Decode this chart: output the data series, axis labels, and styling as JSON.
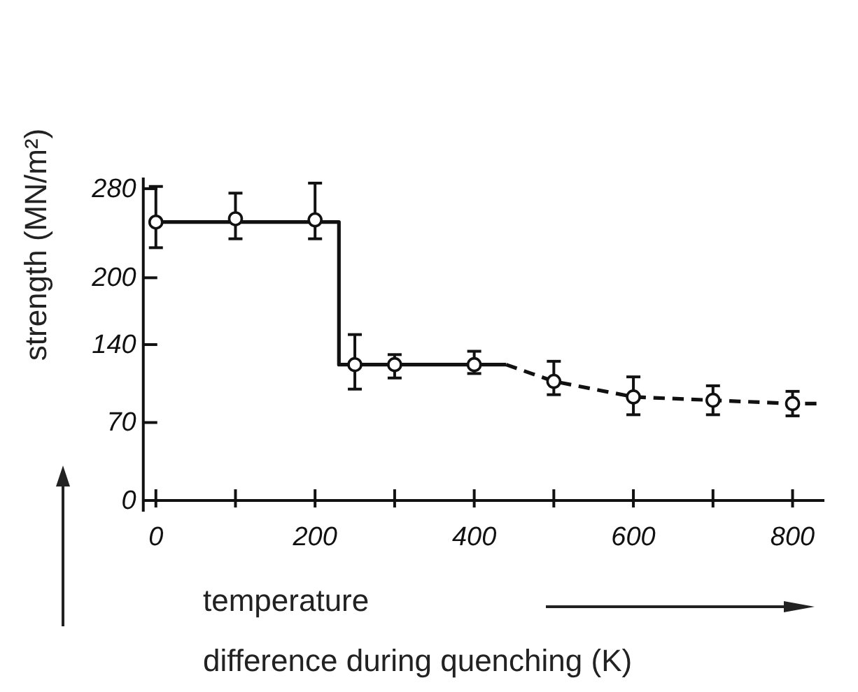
{
  "chart_data": {
    "type": "scatter",
    "xlabel": "temperature\ndifference during quenching (K)",
    "ylabel": "strength (MN/m²)",
    "xlim": [
      -20,
      840
    ],
    "ylim": [
      0,
      290
    ],
    "xticks": [
      0,
      {
        "value": 100,
        "label": null
      },
      200,
      {
        "value": 300,
        "label": null
      },
      400,
      {
        "value": 500,
        "label": null
      },
      600,
      {
        "value": 700,
        "label": null
      },
      800
    ],
    "yticks": [
      0,
      70,
      140,
      200,
      280
    ],
    "grid": false,
    "series": [
      {
        "type": "line",
        "color": "#111111",
        "line_style": "solid",
        "x": [
          0,
          230,
          230,
          440
        ],
        "values": [
          250,
          250,
          122,
          122
        ]
      },
      {
        "type": "line",
        "color": "#111111",
        "line_style": "dashed",
        "x": [
          440,
          500,
          600,
          700,
          800,
          830
        ],
        "values": [
          122,
          107,
          93,
          90,
          87,
          87
        ]
      },
      {
        "color": "#111111",
        "marker": "circle",
        "x": [
          0,
          100,
          200,
          250,
          300,
          400,
          500,
          600,
          700,
          800
        ],
        "values": [
          250,
          253,
          252,
          122,
          122,
          122,
          107,
          93,
          90,
          87
        ],
        "errors": [
          [
            227,
            282
          ],
          [
            235,
            276
          ],
          [
            235,
            285
          ],
          [
            100,
            149
          ],
          [
            110,
            131
          ],
          [
            114,
            134
          ],
          [
            95,
            125
          ],
          [
            77,
            111
          ],
          [
            77,
            103
          ],
          [
            76,
            98
          ]
        ]
      }
    ]
  }
}
